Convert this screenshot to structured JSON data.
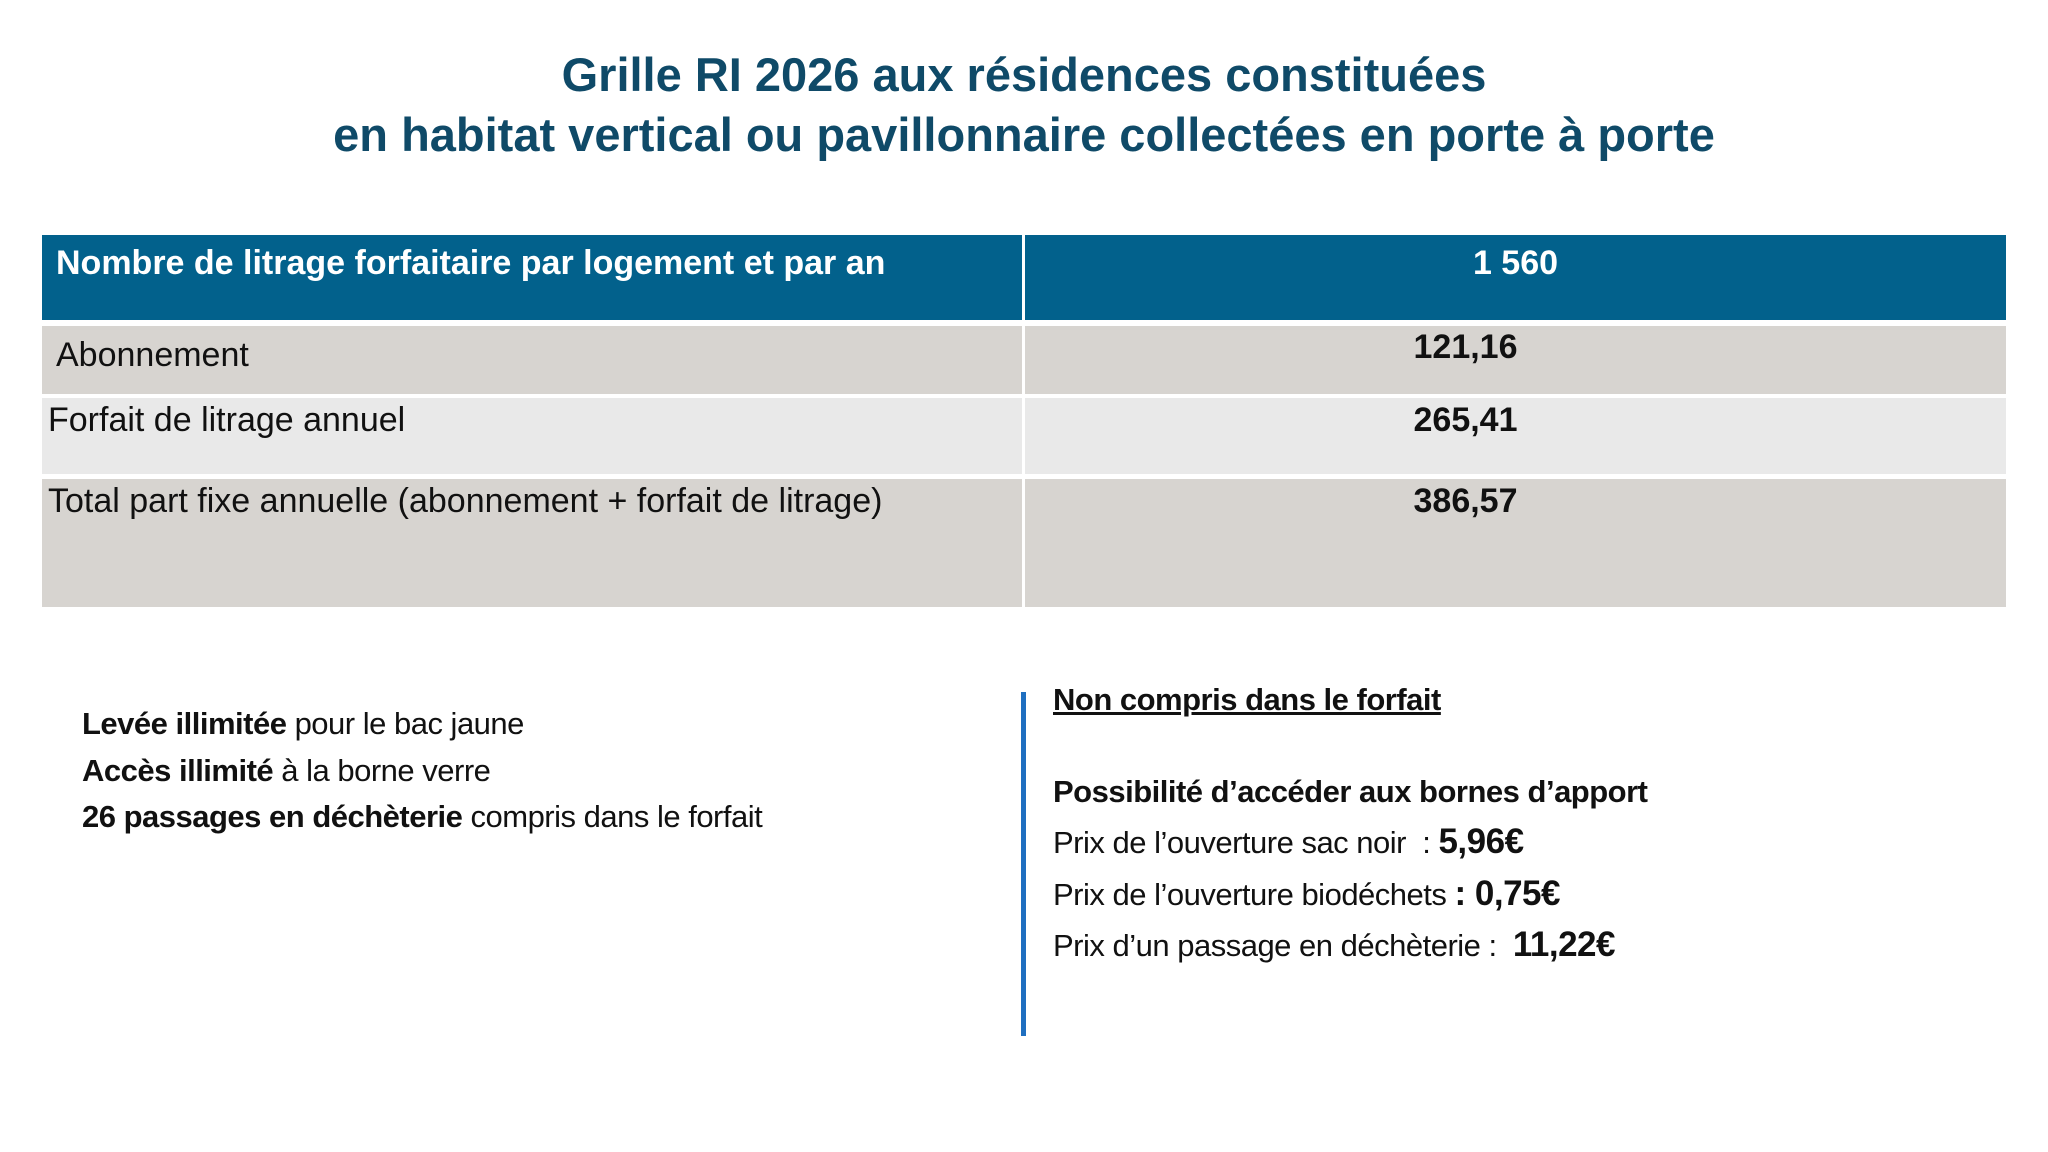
{
  "title": {
    "line1": "Grille RI 2026 aux résidences constituées",
    "line2": "en habitat vertical ou pavillonnaire collectées en porte à porte"
  },
  "table": {
    "header": {
      "label": "Nombre de litrage forfaitaire par logement et par an",
      "value": "1 560"
    },
    "rows": [
      {
        "label": "Abonnement",
        "value": "121,16"
      },
      {
        "label": "Forfait de litrage annuel",
        "value": "265,41"
      },
      {
        "label": "Total part fixe annuelle (abonnement + forfait de litrage)",
        "value": "386,57"
      }
    ]
  },
  "included": [
    {
      "bold": "Levée illimitée",
      "rest": " pour le bac jaune"
    },
    {
      "bold": "Accès illimité",
      "rest": " à la borne verre"
    },
    {
      "bold": "26 passages en déchèterie",
      "rest": " compris dans le forfait"
    }
  ],
  "not_included": {
    "heading": "Non compris dans le forfait",
    "subheading": "Possibilité d’accéder aux bornes d’apport",
    "prices": [
      {
        "label": "Prix de l’ouverture sac noir  : ",
        "value": "5,96€"
      },
      {
        "label": "Prix de l’ouverture biodéchets ",
        "value": ": 0,75€"
      },
      {
        "label": "Prix d’un passage en déchèterie :  ",
        "value": "11,22€"
      }
    ]
  },
  "colors": {
    "header": "#02618c",
    "title": "#0f4a68",
    "divider": "#1f6fc0"
  }
}
